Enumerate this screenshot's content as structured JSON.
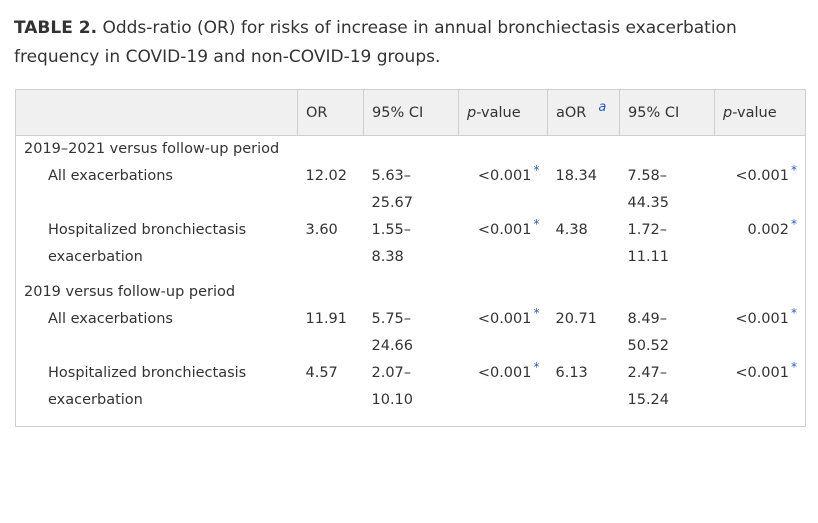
{
  "caption": {
    "label": "TABLE 2.",
    "text": "Odds-ratio (OR) for risks of increase in annual bronchiectasis exacerbation frequency in COVID-19 and non-COVID-19 groups."
  },
  "headers": {
    "or": "OR",
    "ci1": "95% CI",
    "p1_italic": "p",
    "p1_rest": "-value",
    "aor": "aOR",
    "aor_sup": "a",
    "ci2": "95% CI",
    "p2_italic": "p",
    "p2_rest": "-value"
  },
  "significance_marker": "*",
  "groups": [
    {
      "label": "2019–2021 versus follow-up period",
      "rows": [
        {
          "label": "All exacerbations",
          "or": "12.02",
          "ci": [
            "5.63–",
            "25.67"
          ],
          "p": "<0.001",
          "aor": "18.34",
          "aci": [
            "7.58–",
            "44.35"
          ],
          "ap": "<0.001"
        },
        {
          "label": [
            "Hospitalized bronchiectasis",
            "exacerbation"
          ],
          "or": "3.60",
          "ci": [
            "1.55–",
            "8.38"
          ],
          "p": "<0.001",
          "aor": "4.38",
          "aci": [
            "1.72–",
            "11.11"
          ],
          "ap": "0.002"
        }
      ]
    },
    {
      "label": "2019 versus follow-up period",
      "rows": [
        {
          "label": "All exacerbations",
          "or": "11.91",
          "ci": [
            "5.75–",
            "24.66"
          ],
          "p": "<0.001",
          "aor": "20.71",
          "aci": [
            "8.49–",
            "50.52"
          ],
          "ap": "<0.001"
        },
        {
          "label": [
            "Hospitalized bronchiectasis",
            "exacerbation"
          ],
          "or": "4.57",
          "ci": [
            "2.07–",
            "10.10"
          ],
          "p": "<0.001",
          "aor": "6.13",
          "aci": [
            "2.47–",
            "15.24"
          ],
          "ap": "<0.001"
        }
      ]
    }
  ]
}
